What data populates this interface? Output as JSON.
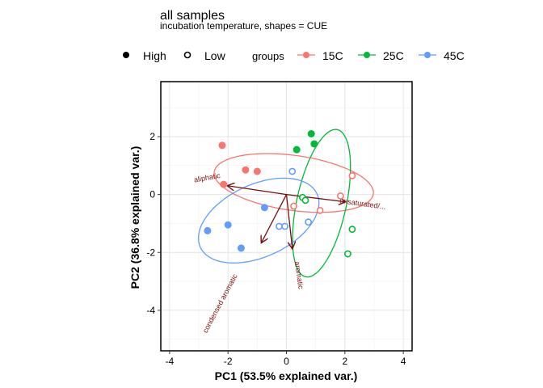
{
  "chart_data": {
    "type": "scatter",
    "title": "all samples",
    "subtitle": "incubation temperature, shapes = CUE",
    "xlabel": "PC1 (53.5% explained var.)",
    "ylabel": "PC2 (36.8% explained var.)",
    "xlim": [
      -4.3,
      4.3
    ],
    "ylim": [
      -5.4,
      3.9
    ],
    "xticks": [
      -4,
      -2,
      0,
      2,
      4
    ],
    "yticks": [
      -4,
      -2,
      0,
      2
    ],
    "grid": true,
    "legend_position": "top",
    "shape_legend": [
      {
        "label": "High",
        "filled": true
      },
      {
        "label": "Low",
        "filled": false
      }
    ],
    "color_legend_title": "groups",
    "series": [
      {
        "name": "15C",
        "color": "#F8766D",
        "points": [
          {
            "x": -2.2,
            "y": 1.7,
            "cue": "High"
          },
          {
            "x": -1.4,
            "y": 0.85,
            "cue": "High"
          },
          {
            "x": -1.0,
            "y": 0.8,
            "cue": "High"
          },
          {
            "x": -2.15,
            "y": 0.35,
            "cue": "High"
          },
          {
            "x": 2.25,
            "y": 0.65,
            "cue": "Low"
          },
          {
            "x": 1.85,
            "y": -0.05,
            "cue": "Low"
          },
          {
            "x": 1.15,
            "y": -0.55,
            "cue": "Low"
          },
          {
            "x": 0.25,
            "y": -0.4,
            "cue": "Low"
          }
        ],
        "ellipse": {
          "cx": 0.25,
          "cy": 0.4,
          "rx": 2.75,
          "ry": 0.95,
          "angle_deg": -8
        }
      },
      {
        "name": "25C",
        "color": "#00BA38",
        "points": [
          {
            "x": 0.85,
            "y": 2.1,
            "cue": "High"
          },
          {
            "x": 0.95,
            "y": 1.75,
            "cue": "High"
          },
          {
            "x": 0.35,
            "y": 1.55,
            "cue": "High"
          },
          {
            "x": 0.55,
            "y": -0.1,
            "cue": "Low"
          },
          {
            "x": 0.65,
            "y": -0.2,
            "cue": "Low"
          },
          {
            "x": 2.25,
            "y": -1.2,
            "cue": "Low"
          },
          {
            "x": 2.1,
            "y": -2.05,
            "cue": "Low"
          }
        ],
        "ellipse": {
          "cx": 1.2,
          "cy": -0.3,
          "rx": 0.85,
          "ry": 2.6,
          "angle_deg": -12
        }
      },
      {
        "name": "45C",
        "color": "#619CFF",
        "points": [
          {
            "x": -2.7,
            "y": -1.25,
            "cue": "High"
          },
          {
            "x": -2.0,
            "y": -1.05,
            "cue": "High"
          },
          {
            "x": -1.55,
            "y": -1.85,
            "cue": "High"
          },
          {
            "x": -0.75,
            "y": -0.45,
            "cue": "High"
          },
          {
            "x": 0.2,
            "y": 0.8,
            "cue": "Low"
          },
          {
            "x": -0.25,
            "y": -1.1,
            "cue": "Low"
          },
          {
            "x": -0.05,
            "y": -1.1,
            "cue": "Low"
          },
          {
            "x": 0.75,
            "y": -0.95,
            "cue": "Low"
          }
        ],
        "ellipse": {
          "cx": -0.95,
          "cy": -0.9,
          "rx": 2.2,
          "ry": 1.25,
          "angle_deg": 25
        }
      }
    ],
    "loadings": [
      {
        "label": "aliphatic",
        "x": -2.0,
        "y": 0.3,
        "label_x": -2.7,
        "label_y": 0.5,
        "label_angle": -10
      },
      {
        "label": "unsaturated/...",
        "x": 2.0,
        "y": -0.25,
        "label_x": 2.6,
        "label_y": -0.4,
        "label_angle": 8
      },
      {
        "label": "condensed aromatic",
        "x": -0.85,
        "y": -1.65,
        "label_x": -2.2,
        "label_y": -3.8,
        "label_angle": -62
      },
      {
        "label": "aromatic",
        "x": 0.2,
        "y": -1.85,
        "label_x": 0.35,
        "label_y": -2.8,
        "label_angle": 82
      }
    ],
    "loading_color": "#7a0e0e"
  }
}
